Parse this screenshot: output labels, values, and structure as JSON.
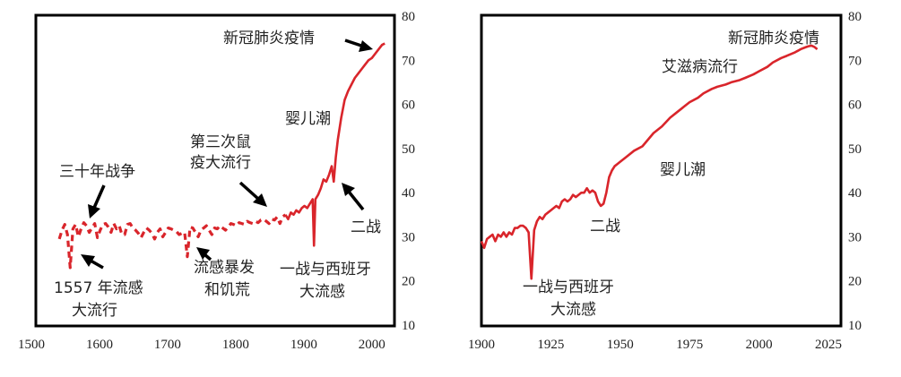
{
  "chart_data": [
    {
      "type": "line",
      "line_style": "dashed-then-solid",
      "color": "#d9252b",
      "xlim": [
        1500,
        2020
      ],
      "ylim": [
        10,
        80
      ],
      "xticks": [
        "1500",
        "1600",
        "1700",
        "1800",
        "1900",
        "2000"
      ],
      "yticks": [
        "10",
        "20",
        "30",
        "40",
        "50",
        "60",
        "70",
        "80"
      ],
      "y_axis_side": "right",
      "grid": false,
      "series": [
        {
          "x": [
            1541,
            1545,
            1549,
            1553,
            1557,
            1561,
            1565,
            1569,
            1573,
            1577,
            1581,
            1585,
            1589,
            1593,
            1597,
            1601,
            1605,
            1609,
            1613,
            1617,
            1621,
            1625,
            1629,
            1633,
            1637,
            1641,
            1645,
            1649,
            1653,
            1657,
            1661,
            1665,
            1669,
            1673,
            1677,
            1681,
            1685,
            1689,
            1693,
            1697,
            1701,
            1705,
            1709,
            1713,
            1717,
            1721,
            1725,
            1729,
            1733,
            1737,
            1741,
            1745,
            1749,
            1753,
            1757,
            1761,
            1765,
            1769,
            1773,
            1777,
            1781,
            1785,
            1789,
            1793,
            1797,
            1801,
            1805,
            1809,
            1813,
            1817,
            1821,
            1825,
            1829,
            1833,
            1837,
            1841,
            1845,
            1849,
            1853,
            1857,
            1861,
            1865,
            1869,
            1873,
            1877,
            1881,
            1885,
            1889,
            1893,
            1897,
            1901,
            1905,
            1909,
            1913,
            1915,
            1917,
            1919,
            1921,
            1925,
            1929,
            1933,
            1937,
            1941,
            1944,
            1947,
            1950,
            1955,
            1960,
            1965,
            1970,
            1975,
            1980,
            1985,
            1990,
            1995,
            2000,
            2005,
            2010,
            2015,
            2019
          ],
          "y": [
            29.5,
            31.5,
            32.8,
            30.5,
            23.0,
            31.8,
            32.8,
            30.0,
            31.8,
            33.2,
            32.5,
            31.0,
            32.0,
            33.0,
            29.8,
            31.5,
            32.8,
            33.0,
            32.2,
            31.0,
            33.0,
            31.8,
            32.5,
            30.5,
            30.5,
            32.8,
            33.0,
            32.0,
            31.5,
            30.8,
            29.8,
            31.0,
            32.0,
            31.5,
            30.8,
            29.5,
            31.0,
            31.8,
            30.0,
            31.0,
            32.0,
            31.8,
            31.5,
            31.2,
            30.5,
            30.8,
            31.0,
            25.5,
            32.2,
            32.0,
            31.0,
            30.0,
            31.5,
            32.0,
            32.5,
            31.5,
            30.5,
            32.0,
            31.8,
            32.5,
            32.0,
            31.5,
            32.2,
            33.0,
            32.8,
            32.5,
            33.2,
            33.0,
            32.8,
            33.5,
            33.2,
            33.0,
            33.5,
            33.2,
            33.8,
            34.0,
            33.5,
            33.0,
            34.0,
            33.8,
            34.5,
            33.0,
            34.5,
            35.0,
            34.0,
            35.5,
            35.0,
            36.0,
            35.5,
            36.5,
            37.0,
            36.5,
            37.5,
            38.5,
            28.0,
            38.5,
            39.0,
            39.5,
            41.0,
            43.0,
            42.5,
            44.0,
            46.0,
            42.5,
            48.0,
            52.0,
            57.0,
            61.0,
            63.0,
            64.5,
            66.0,
            67.0,
            68.0,
            69.0,
            70.0,
            70.5,
            71.5,
            72.5,
            73.5,
            73.8
          ]
        }
      ],
      "annotations": [
        "三十年战争",
        "第三次鼠",
        "疫大流行",
        "婴儿潮",
        "新冠肺炎疫情",
        "二战",
        "1557 年流感",
        "大流行",
        "流感暴发",
        "和饥荒",
        "一战与西班牙",
        "大流感"
      ]
    },
    {
      "type": "line",
      "color": "#d9252b",
      "xlim": [
        1900,
        2025
      ],
      "ylim": [
        10,
        80
      ],
      "xticks": [
        "1900",
        "1925",
        "1950",
        "1975",
        "2000",
        "2025"
      ],
      "yticks": [
        "10",
        "20",
        "30",
        "40",
        "50",
        "60",
        "70",
        "80"
      ],
      "y_axis_side": "right",
      "grid": false,
      "series": [
        {
          "x": [
            1900,
            1901,
            1902,
            1903,
            1904,
            1905,
            1906,
            1907,
            1908,
            1909,
            1910,
            1911,
            1912,
            1913,
            1914,
            1915,
            1916,
            1917,
            1918,
            1919,
            1920,
            1921,
            1922,
            1923,
            1924,
            1925,
            1926,
            1927,
            1928,
            1929,
            1930,
            1931,
            1932,
            1933,
            1934,
            1935,
            1936,
            1937,
            1938,
            1939,
            1940,
            1941,
            1942,
            1943,
            1944,
            1945,
            1946,
            1947,
            1948,
            1949,
            1950,
            1952,
            1955,
            1958,
            1960,
            1962,
            1965,
            1968,
            1970,
            1973,
            1975,
            1978,
            1980,
            1983,
            1985,
            1988,
            1990,
            1993,
            1995,
            1998,
            2000,
            2003,
            2005,
            2008,
            2010,
            2013,
            2015,
            2017,
            2018,
            2019,
            2020,
            2021
          ],
          "y": [
            29.0,
            27.5,
            29.5,
            30.0,
            30.5,
            29.0,
            30.5,
            30.0,
            31.0,
            30.0,
            31.0,
            30.5,
            32.0,
            32.0,
            32.5,
            32.5,
            32.0,
            31.0,
            20.5,
            31.5,
            33.5,
            34.5,
            34.0,
            35.0,
            35.5,
            36.0,
            36.5,
            37.0,
            36.5,
            38.0,
            38.5,
            38.0,
            38.5,
            39.5,
            39.0,
            39.5,
            40.0,
            40.0,
            41.0,
            40.0,
            40.5,
            40.0,
            38.0,
            37.0,
            37.5,
            40.0,
            43.5,
            45.0,
            46.0,
            46.5,
            47.0,
            48.0,
            49.5,
            50.5,
            52.0,
            53.5,
            55.0,
            57.0,
            58.0,
            59.5,
            60.5,
            61.5,
            62.5,
            63.5,
            64.0,
            64.5,
            65.0,
            65.5,
            66.0,
            66.8,
            67.5,
            68.5,
            69.5,
            70.5,
            71.0,
            71.8,
            72.5,
            73.0,
            73.2,
            73.3,
            73.0,
            72.5
          ]
        }
      ],
      "annotations": [
        "新冠肺炎疫情",
        "艾滋病流行",
        "婴儿潮",
        "二战",
        "一战与西班牙",
        "大流感"
      ]
    }
  ]
}
